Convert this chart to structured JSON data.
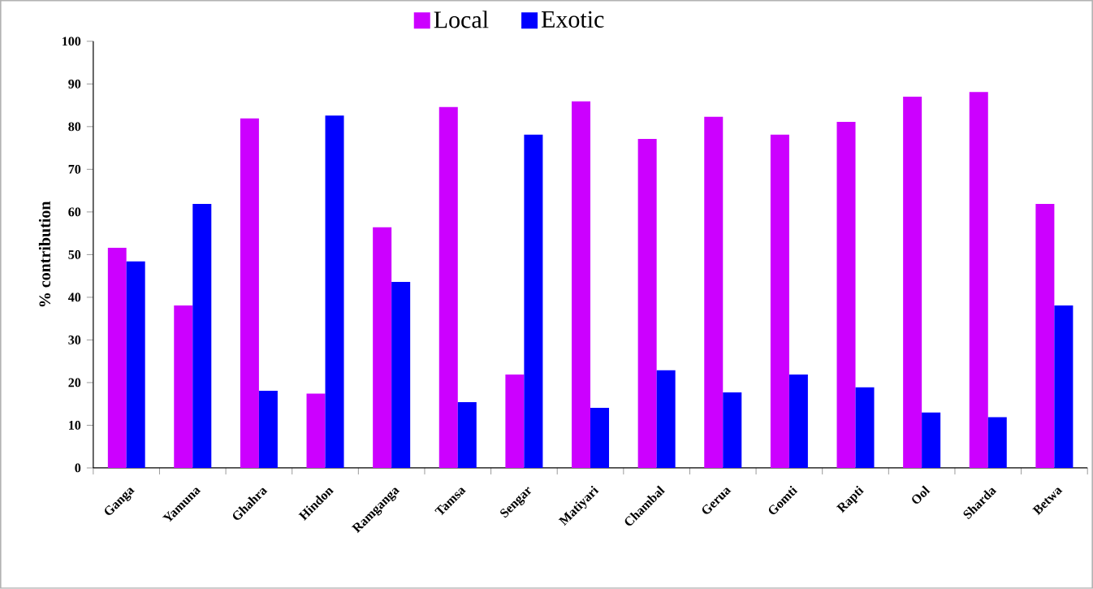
{
  "chart_data": {
    "type": "bar",
    "ylabel": "%  contribution",
    "categories": [
      "Ganga",
      "Yamuna",
      "Ghahra",
      "Hindon",
      "Ramganga",
      "Tamsa",
      "Sengar",
      "Matiyari",
      "Chambal",
      "Gerua",
      "Gomti",
      "Rapti",
      "Ool",
      "Sharda",
      "Betwa"
    ],
    "series": [
      {
        "name": "Local",
        "color": "#cc00ff",
        "values": [
          51.6,
          38.1,
          81.9,
          17.4,
          56.4,
          84.6,
          21.9,
          85.9,
          77.1,
          82.3,
          78.1,
          81.1,
          87.0,
          88.1,
          61.9
        ]
      },
      {
        "name": "Exotic",
        "color": "#0000ff",
        "values": [
          48.4,
          61.9,
          18.1,
          82.6,
          43.6,
          15.4,
          78.1,
          14.1,
          22.9,
          17.7,
          21.9,
          18.9,
          13.0,
          11.9,
          38.1
        ]
      }
    ],
    "ylim": [
      0,
      100
    ],
    "yticks": [
      0,
      10,
      20,
      30,
      40,
      50,
      60,
      70,
      80,
      90,
      100
    ],
    "legend": "top"
  }
}
